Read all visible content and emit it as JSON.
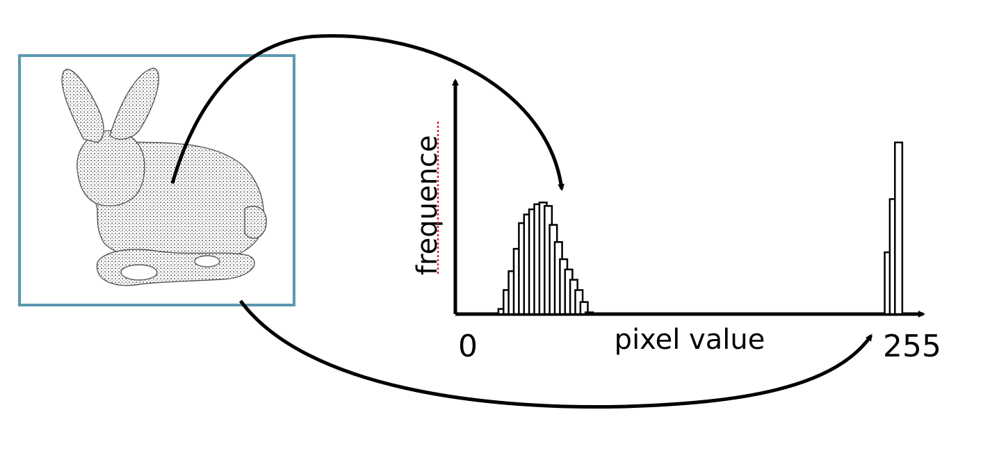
{
  "colors": {
    "image_frame": "#5b97b1",
    "ink": "#000000",
    "spell_underline": "#e0202a"
  },
  "image": {
    "subject_icon": "stanford-bunny-icon"
  },
  "chart_data": {
    "type": "bar",
    "xlabel": "pixel value",
    "ylabel": "frequence",
    "x_ticks": [
      "0",
      "255"
    ],
    "xlim": [
      0,
      255
    ],
    "bars": [
      {
        "x": 20,
        "value": 0.03
      },
      {
        "x": 23,
        "value": 0.14
      },
      {
        "x": 26,
        "value": 0.25
      },
      {
        "x": 29,
        "value": 0.38
      },
      {
        "x": 32,
        "value": 0.53
      },
      {
        "x": 35,
        "value": 0.58
      },
      {
        "x": 38,
        "value": 0.61
      },
      {
        "x": 41,
        "value": 0.64
      },
      {
        "x": 44,
        "value": 0.65
      },
      {
        "x": 47,
        "value": 0.63
      },
      {
        "x": 50,
        "value": 0.52
      },
      {
        "x": 53,
        "value": 0.42
      },
      {
        "x": 56,
        "value": 0.32
      },
      {
        "x": 59,
        "value": 0.26
      },
      {
        "x": 62,
        "value": 0.2
      },
      {
        "x": 65,
        "value": 0.14
      },
      {
        "x": 68,
        "value": 0.07
      },
      {
        "x": 71,
        "value": 0.01
      },
      {
        "x": 246,
        "value": 0.36
      },
      {
        "x": 249,
        "value": 0.67
      },
      {
        "x": 252,
        "value": 1.0
      }
    ]
  }
}
